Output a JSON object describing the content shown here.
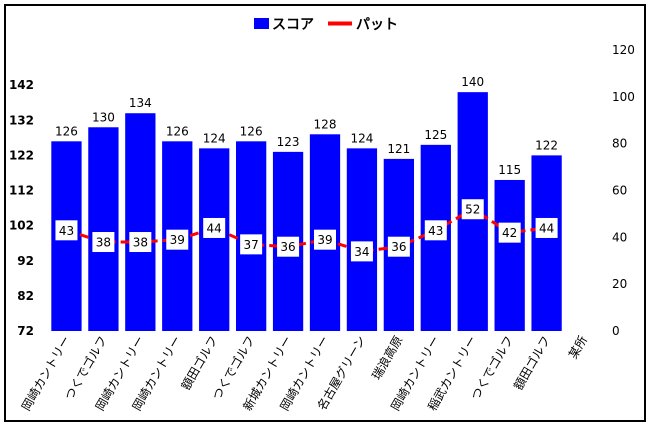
{
  "chart_data": {
    "type": "bar",
    "categories": [
      "岡崎カントリー",
      "つくでゴルフ",
      "岡崎カントリー",
      "岡崎カントリー",
      "額田ゴルフ",
      "つくでゴルフ",
      "新城カントリー",
      "岡崎カントリー",
      "名古屋グリーン",
      "瑞浪高原",
      "岡崎カントリー",
      "稲武カントリー",
      "つくでゴルフ",
      "額田ゴルフ",
      "某所"
    ],
    "series": [
      {
        "name": "スコア",
        "type": "bar",
        "axis": "left",
        "color": "#0000ff",
        "values": [
          126,
          130,
          134,
          126,
          124,
          126,
          123,
          128,
          124,
          121,
          125,
          140,
          115,
          122,
          null
        ]
      },
      {
        "name": "パット",
        "type": "line",
        "axis": "right",
        "color": "#ff0000",
        "values": [
          43,
          38,
          38,
          39,
          44,
          37,
          36,
          39,
          34,
          36,
          43,
          52,
          42,
          44,
          null
        ]
      }
    ],
    "left_axis": {
      "ylim": [
        72,
        152
      ],
      "ticks": [
        72,
        82,
        92,
        102,
        112,
        122,
        132,
        142
      ]
    },
    "right_axis": {
      "ylim": [
        0,
        120
      ],
      "ticks": [
        0,
        20,
        40,
        60,
        80,
        100,
        120
      ]
    },
    "legend": "top-center",
    "grid": false
  }
}
